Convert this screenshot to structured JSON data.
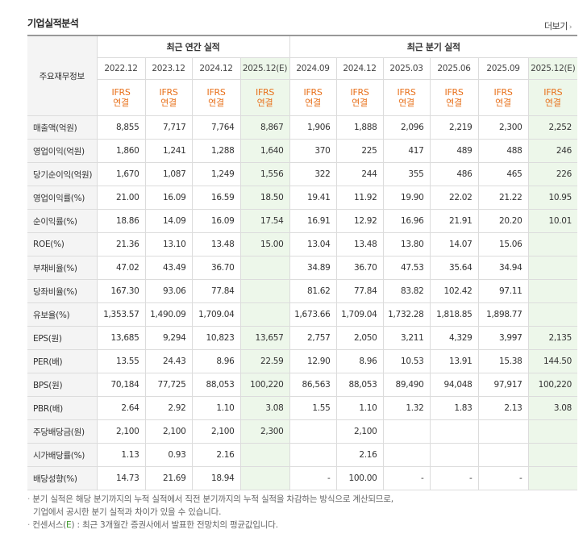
{
  "header": {
    "title": "기업실적분석",
    "more_label": "더보기",
    "more_arrow": "›"
  },
  "table": {
    "corner_label": "주요재무정보",
    "annual_group": "최근 연간 실적",
    "quarter_group": "최근 분기 실적",
    "periods": [
      "2022.12",
      "2023.12",
      "2024.12",
      "2025.12(E)",
      "2024.09",
      "2024.12",
      "2025.03",
      "2025.06",
      "2025.09",
      "2025.12(E)"
    ],
    "estimate_columns": [
      3,
      9
    ],
    "ifrs_top": "IFRS",
    "ifrs_bottom": "연결",
    "rows": [
      {
        "label": "매출액(억원)",
        "values": [
          "8,855",
          "7,717",
          "7,764",
          "8,867",
          "1,906",
          "1,888",
          "2,096",
          "2,219",
          "2,300",
          "2,252"
        ]
      },
      {
        "label": "영업이익(억원)",
        "values": [
          "1,860",
          "1,241",
          "1,288",
          "1,640",
          "370",
          "225",
          "417",
          "489",
          "488",
          "246"
        ]
      },
      {
        "label": "당기순이익(억원)",
        "values": [
          "1,670",
          "1,087",
          "1,249",
          "1,556",
          "322",
          "244",
          "355",
          "486",
          "465",
          "226"
        ]
      },
      {
        "label": "영업이익률(%)",
        "values": [
          "21.00",
          "16.09",
          "16.59",
          "18.50",
          "19.41",
          "11.92",
          "19.90",
          "22.02",
          "21.22",
          "10.95"
        ]
      },
      {
        "label": "순이익률(%)",
        "values": [
          "18.86",
          "14.09",
          "16.09",
          "17.54",
          "16.91",
          "12.92",
          "16.96",
          "21.91",
          "20.20",
          "10.01"
        ]
      },
      {
        "label": "ROE(%)",
        "values": [
          "21.36",
          "13.10",
          "13.48",
          "15.00",
          "13.04",
          "13.48",
          "13.80",
          "14.07",
          "15.06",
          ""
        ]
      },
      {
        "label": "부채비율(%)",
        "values": [
          "47.02",
          "43.49",
          "36.70",
          "",
          "34.89",
          "36.70",
          "47.53",
          "35.64",
          "34.94",
          ""
        ]
      },
      {
        "label": "당좌비율(%)",
        "values": [
          "167.30",
          "93.06",
          "77.84",
          "",
          "81.62",
          "77.84",
          "83.82",
          "102.42",
          "97.11",
          ""
        ]
      },
      {
        "label": "유보율(%)",
        "values": [
          "1,353.57",
          "1,490.09",
          "1,709.04",
          "",
          "1,673.66",
          "1,709.04",
          "1,732.28",
          "1,818.85",
          "1,898.77",
          ""
        ]
      },
      {
        "label": "EPS(원)",
        "values": [
          "13,685",
          "9,294",
          "10,823",
          "13,657",
          "2,757",
          "2,050",
          "3,211",
          "4,329",
          "3,997",
          "2,135"
        ]
      },
      {
        "label": "PER(배)",
        "values": [
          "13.55",
          "24.43",
          "8.96",
          "22.59",
          "12.90",
          "8.96",
          "10.53",
          "13.91",
          "15.38",
          "144.50"
        ]
      },
      {
        "label": "BPS(원)",
        "values": [
          "70,184",
          "77,725",
          "88,053",
          "100,220",
          "86,563",
          "88,053",
          "89,490",
          "94,048",
          "97,917",
          "100,220"
        ]
      },
      {
        "label": "PBR(배)",
        "values": [
          "2.64",
          "2.92",
          "1.10",
          "3.08",
          "1.55",
          "1.10",
          "1.32",
          "1.83",
          "2.13",
          "3.08"
        ]
      },
      {
        "label": "주당배당금(원)",
        "values": [
          "2,100",
          "2,100",
          "2,100",
          "2,300",
          "",
          "2,100",
          "",
          "",
          "",
          ""
        ]
      },
      {
        "label": "시가배당률(%)",
        "values": [
          "1.13",
          "0.93",
          "2.16",
          "",
          "",
          "2.16",
          "",
          "",
          "",
          ""
        ]
      },
      {
        "label": "배당성향(%)",
        "values": [
          "14.73",
          "21.69",
          "18.94",
          "",
          "-",
          "100.00",
          "-",
          "-",
          "-",
          ""
        ]
      }
    ],
    "separator_rows": [
      3,
      6,
      9,
      13
    ]
  },
  "notes": {
    "bullet": "·",
    "line1": "분기 실적은 해당 분기까지의 누적 실적에서 직전 분기까지의 누적 실적을 차감하는 방식으로 계산되므로,",
    "line2": "기업에서 공시한 분기 실적과 차이가 있을 수 있습니다.",
    "line3_pre": "컨센서스(",
    "line3_e": "E",
    "line3_post": ") : 최근 3개월간 증권사에서 발표한 전망치의 평균값입니다."
  },
  "colors": {
    "ifrs": "#e8701a",
    "estimate_bg": "#edf7ea",
    "header_bg": "#f4f4f4",
    "consensus_e": "#3f9a2c"
  }
}
